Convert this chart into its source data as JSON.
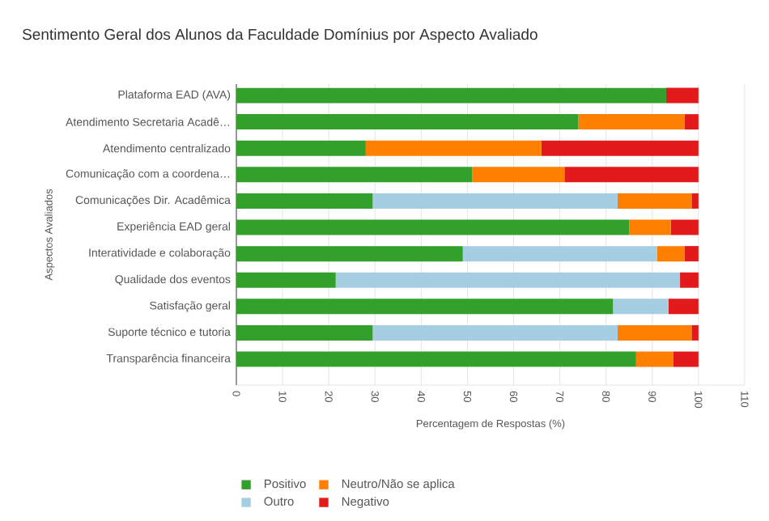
{
  "chart_data": {
    "type": "bar",
    "orientation": "horizontal",
    "stacked": true,
    "title": "Sentimento Geral dos Alunos da Faculdade Domínius por Aspecto Avaliado",
    "xlabel": "Percentagem de Respostas (%)",
    "ylabel": "Aspectos Avaliados",
    "categories": [
      "Plataforma EAD (AVA)",
      "Atendimento Secretaria Acadê…",
      "Atendimento centralizado",
      "Comunicação com a coordena…",
      "Comunicações Dir. Acadêmica",
      "Experiência EAD geral",
      "Interatividade e colaboração",
      "Qualidade dos eventos",
      "Satisfação geral",
      "Suporte técnico e tutoria",
      "Transparência financeira"
    ],
    "series": [
      {
        "name": "Positivo",
        "color": "#33a02c",
        "values": [
          93,
          74,
          28,
          51,
          29.5,
          85,
          49,
          21.5,
          81.5,
          29.5,
          86.5
        ]
      },
      {
        "name": "Outro",
        "color": "#a6cee3",
        "values": [
          null,
          null,
          null,
          null,
          53,
          null,
          42,
          74.5,
          12,
          53,
          null
        ]
      },
      {
        "name": "Neutro/Não se aplica",
        "color": "#ff7f00",
        "values": [
          null,
          23,
          38,
          20,
          16,
          9,
          6,
          null,
          null,
          16,
          8
        ]
      },
      {
        "name": "Negativo",
        "color": "#e31a1c",
        "values": [
          7,
          3,
          34,
          29,
          1.5,
          6,
          3,
          4,
          6.5,
          1.5,
          5.5
        ]
      }
    ],
    "xlim": [
      0,
      110
    ],
    "xticks": [
      0,
      10,
      20,
      30,
      40,
      50,
      60,
      70,
      80,
      90,
      100,
      110
    ],
    "grid": "x",
    "legend": "bottom"
  }
}
